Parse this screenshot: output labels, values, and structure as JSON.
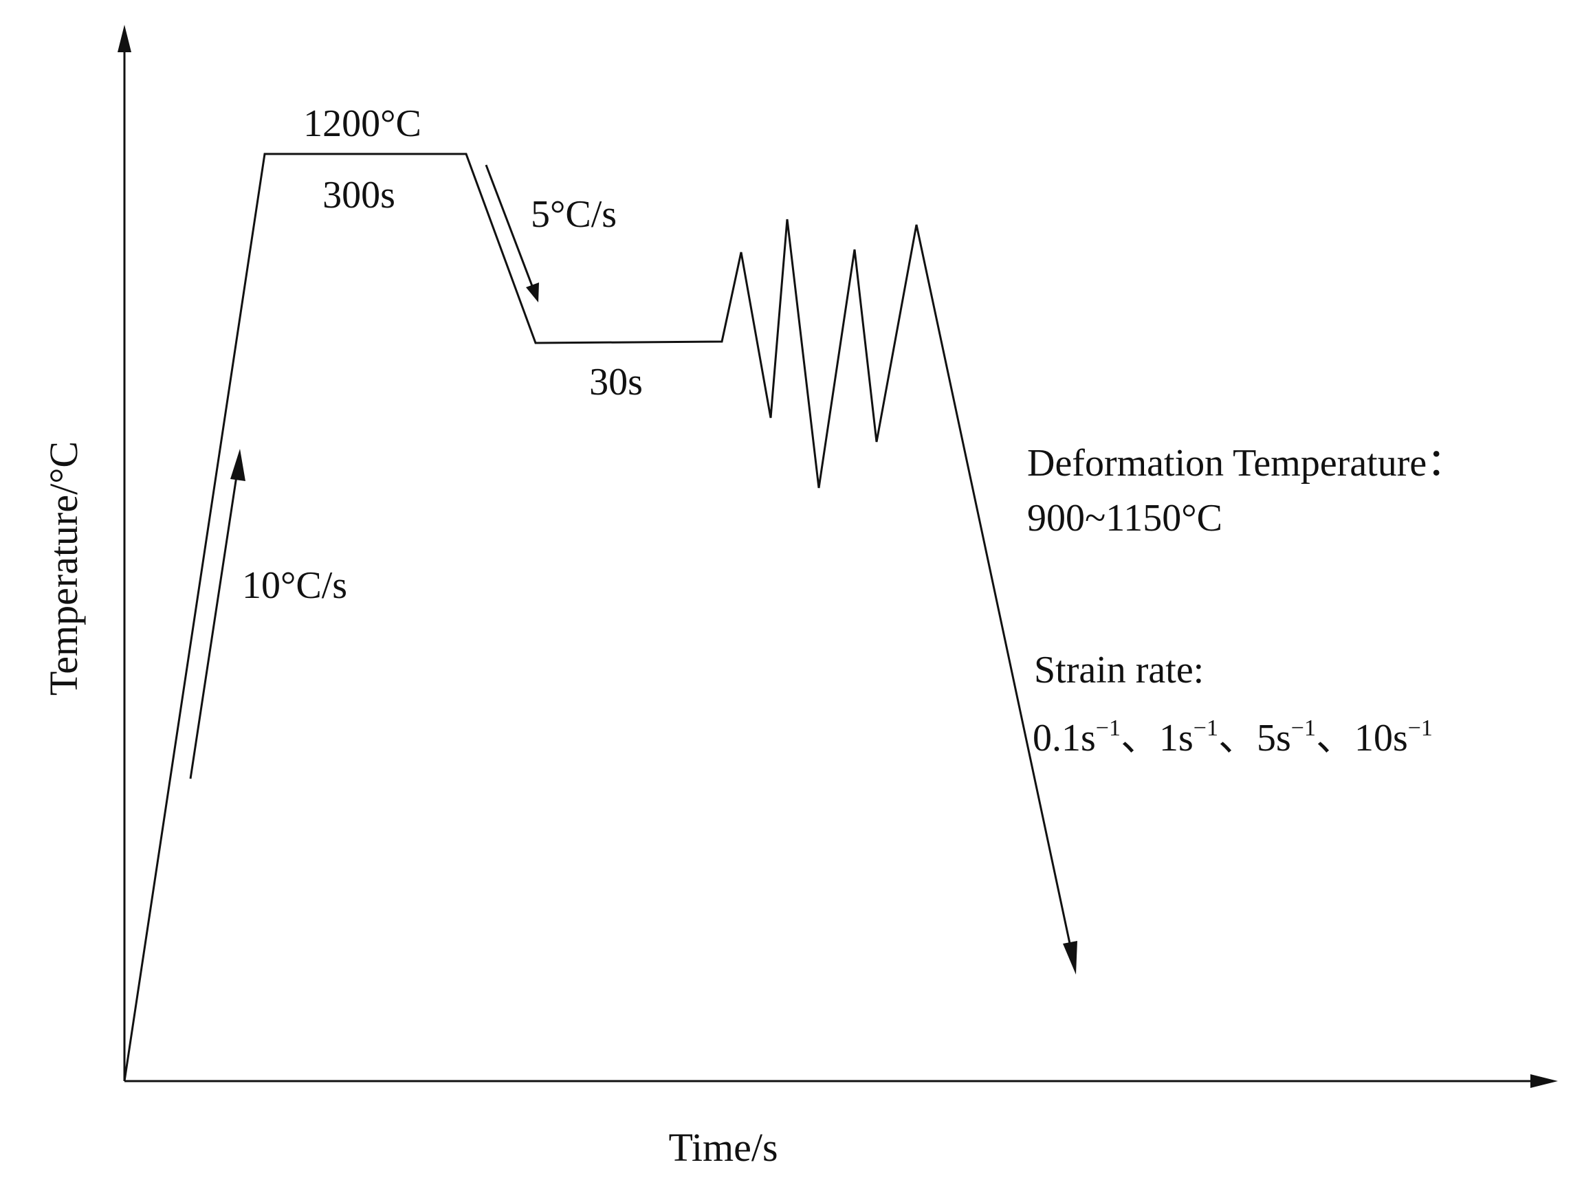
{
  "diagram": {
    "y_axis_label": "Temperature/°C",
    "x_axis_label": "Time/s",
    "soak_temperature": "1200°C",
    "soak_time": "300s",
    "heating_rate": "10°C/s",
    "cooling_rate": "5°C/s",
    "hold_time": "30s",
    "deformation_temperature_label": "Deformation Temperature：",
    "deformation_temperature_value": "900~1150°C",
    "strain_rate_label": "Strain rate:",
    "strain_rates": [
      {
        "value": "0.1s",
        "exponent": "−1",
        "separator": "、"
      },
      {
        "value": "1s",
        "exponent": "−1",
        "separator": "、"
      },
      {
        "value": "5s",
        "exponent": "−1",
        "separator": "、"
      },
      {
        "value": "10s",
        "exponent": "−1",
        "separator": ""
      }
    ]
  }
}
